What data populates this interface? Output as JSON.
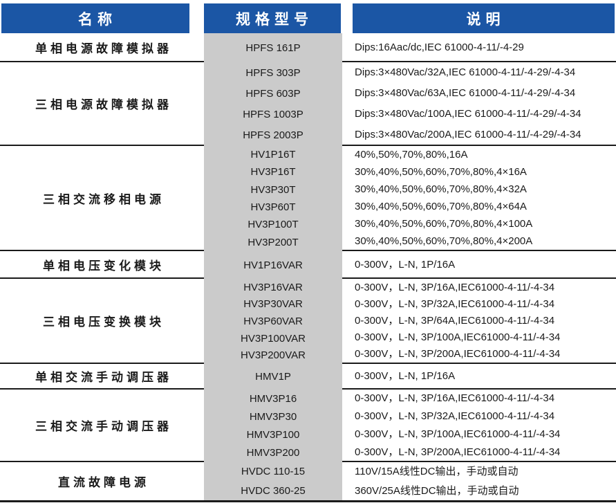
{
  "table": {
    "headers": [
      {
        "label": "名称"
      },
      {
        "label": "规格型号"
      },
      {
        "label": "说明"
      }
    ],
    "rows": [
      {
        "name": "单相电源故障模拟器",
        "models": [
          "HPFS 161P"
        ],
        "descriptions": [
          "Dips:16Aac/dc,IEC 61000-4-11/-4-29"
        ]
      },
      {
        "name": "三相电源故障模拟器",
        "models": [
          "HPFS 303P",
          "HPFS 603P",
          "HPFS 1003P",
          "HPFS 2003P"
        ],
        "descriptions": [
          "Dips:3×480Vac/32A,IEC 61000-4-11/-4-29/-4-34",
          "Dips:3×480Vac/63A,IEC 61000-4-11/-4-29/-4-34",
          "Dips:3×480Vac/100A,IEC 61000-4-11/-4-29/-4-34",
          "Dips:3×480Vac/200A,IEC 61000-4-11/-4-29/-4-34"
        ]
      },
      {
        "name": "三相交流移相电源",
        "models": [
          "HV1P16T",
          "HV3P16T",
          "HV3P30T",
          "HV3P60T",
          "HV3P100T",
          "HV3P200T"
        ],
        "descriptions": [
          "40%,50%,70%,80%,16A",
          "30%,40%,50%,60%,70%,80%,4×16A",
          "30%,40%,50%,60%,70%,80%,4×32A",
          "30%,40%,50%,60%,70%,80%,4×64A",
          "30%,40%,50%,60%,70%,80%,4×100A",
          "30%,40%,50%,60%,70%,80%,4×200A"
        ]
      },
      {
        "name": "单相电压变化模块",
        "models": [
          "HV1P16VAR"
        ],
        "descriptions": [
          "0-300V，L-N, 1P/16A"
        ]
      },
      {
        "name": "三相电压变换模块",
        "models": [
          "HV3P16VAR",
          "HV3P30VAR",
          "HV3P60VAR",
          "HV3P100VAR",
          "HV3P200VAR"
        ],
        "descriptions": [
          "0-300V，L-N, 3P/16A,IEC61000-4-11/-4-34",
          "0-300V，L-N, 3P/32A,IEC61000-4-11/-4-34",
          "0-300V，L-N, 3P/64A,IEC61000-4-11/-4-34",
          "0-300V，L-N, 3P/100A,IEC61000-4-11/-4-34",
          "0-300V，L-N, 3P/200A,IEC61000-4-11/-4-34"
        ]
      },
      {
        "name": "单相交流手动调压器",
        "models": [
          "HMV1P"
        ],
        "descriptions": [
          "0-300V，L-N, 1P/16A"
        ]
      },
      {
        "name": "三相交流手动调压器",
        "models": [
          "HMV3P16",
          "HMV3P30",
          "HMV3P100",
          "HMV3P200"
        ],
        "descriptions": [
          "0-300V，L-N, 3P/16A,IEC61000-4-11/-4-34",
          "0-300V，L-N, 3P/32A,IEC61000-4-11/-4-34",
          "0-300V，L-N, 3P/100A,IEC61000-4-11/-4-34",
          "0-300V，L-N, 3P/200A,IEC61000-4-11/-4-34"
        ]
      },
      {
        "name": "直流故障电源",
        "models": [
          "HVDC 110-15",
          "HVDC 360-25"
        ],
        "descriptions": [
          "110V/15A线性DC输出，手动或自动",
          "360V/25A线性DC输出，手动或自动"
        ]
      }
    ]
  },
  "colors": {
    "header_bg": "#1B56A5",
    "header_text": "#FFFFFF",
    "model_column_bg": "#CBCBCB",
    "separator_line": "#1A1A1A",
    "body_text": "#1A1A1A"
  }
}
